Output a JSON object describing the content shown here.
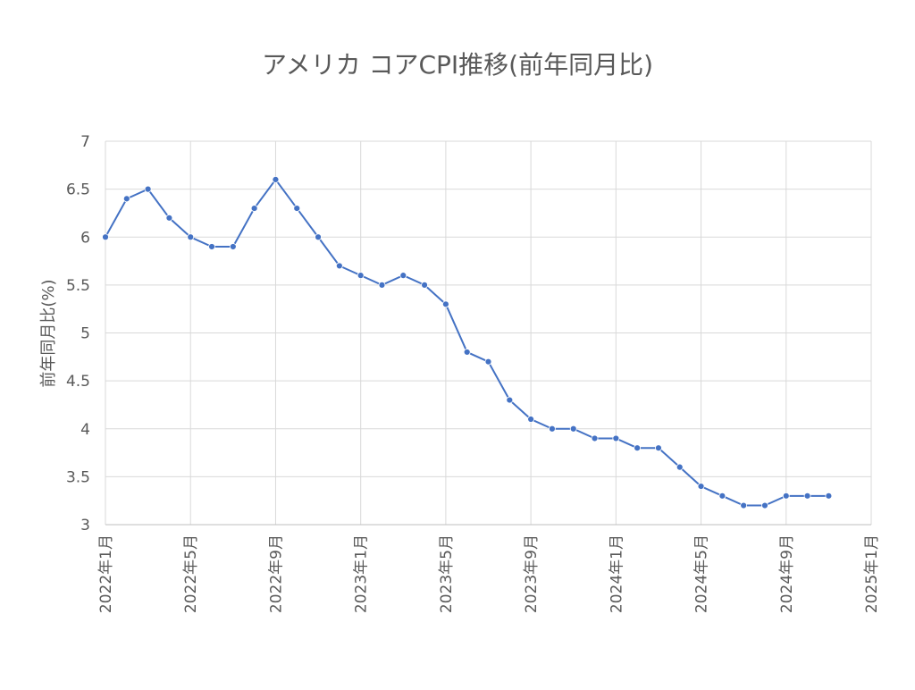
{
  "chart_data": {
    "type": "line",
    "title": "アメリカ コアCPI推移(前年同月比)",
    "xlabel": "",
    "ylabel": "前年同月比(%)",
    "ylim": [
      3,
      7
    ],
    "yticks": [
      "3",
      "3.5",
      "4",
      "4.5",
      "5",
      "5.5",
      "6",
      "6.5",
      "7"
    ],
    "xticks": [
      "2022年1月",
      "2022年5月",
      "2022年9月",
      "2023年1月",
      "2023年5月",
      "2023年9月",
      "2024年1月",
      "2024年5月",
      "2024年9月",
      "2025年1月"
    ],
    "grid": true,
    "x": [
      "2022-01",
      "2022-02",
      "2022-03",
      "2022-04",
      "2022-05",
      "2022-06",
      "2022-07",
      "2022-08",
      "2022-09",
      "2022-10",
      "2022-11",
      "2022-12",
      "2023-01",
      "2023-02",
      "2023-03",
      "2023-04",
      "2023-05",
      "2023-06",
      "2023-07",
      "2023-08",
      "2023-09",
      "2023-10",
      "2023-11",
      "2023-12",
      "2024-01",
      "2024-02",
      "2024-03",
      "2024-04",
      "2024-05",
      "2024-06",
      "2024-07",
      "2024-08",
      "2024-09",
      "2024-10",
      "2024-11"
    ],
    "series": [
      {
        "values": [
          6.0,
          6.4,
          6.5,
          6.2,
          6.0,
          5.9,
          5.9,
          6.3,
          6.6,
          6.3,
          6.0,
          5.7,
          5.6,
          5.5,
          5.6,
          5.5,
          5.3,
          4.8,
          4.7,
          4.3,
          4.1,
          4.0,
          4.0,
          3.9,
          3.9,
          3.8,
          3.8,
          3.6,
          3.4,
          3.3,
          3.2,
          3.2,
          3.3,
          3.3,
          3.3
        ],
        "color": "#4472C4"
      }
    ]
  }
}
